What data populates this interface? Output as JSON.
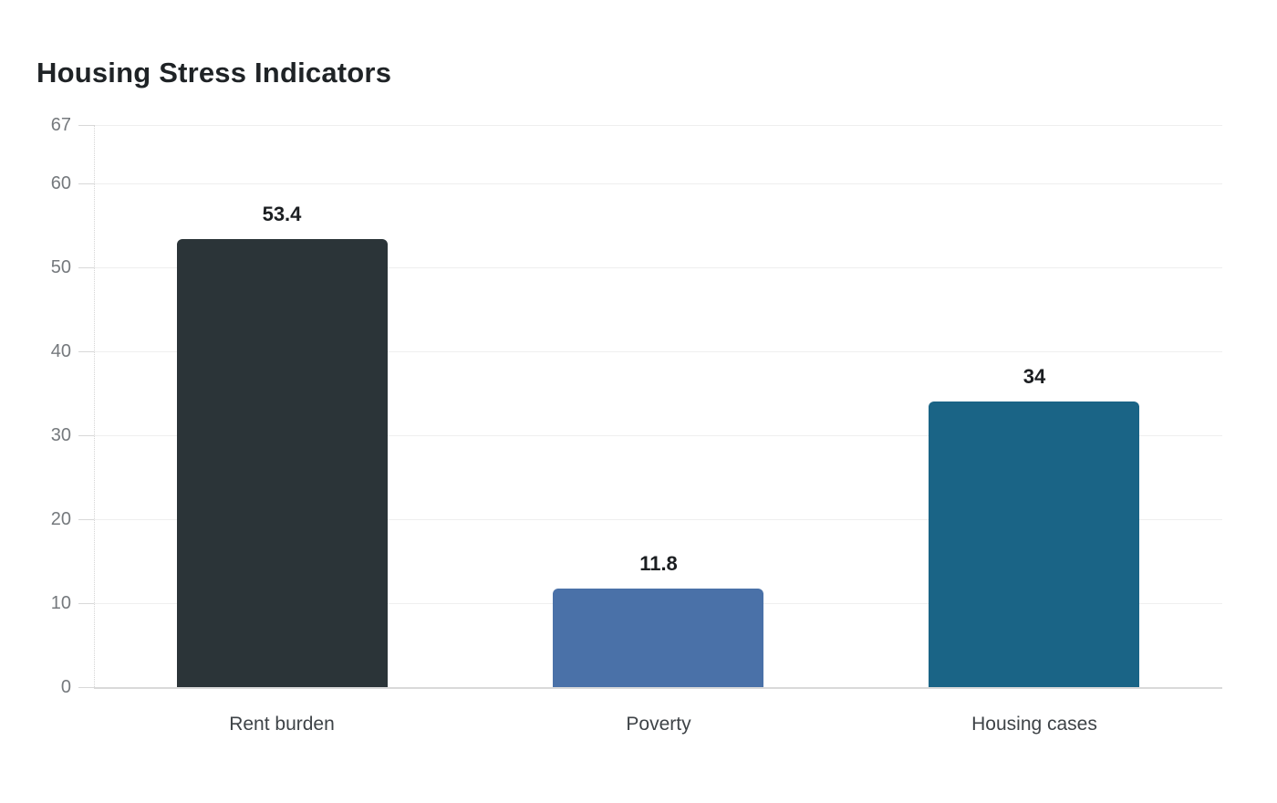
{
  "title": "Housing Stress Indicators",
  "chart_data": {
    "type": "bar",
    "title": "Housing Stress Indicators",
    "categories": [
      "Rent burden",
      "Poverty",
      "Housing cases"
    ],
    "values": [
      53.4,
      11.8,
      34
    ],
    "value_labels": [
      "53.4",
      "11.8",
      "34"
    ],
    "bar_colors": [
      "#2b3438",
      "#4a71a8",
      "#1a6486"
    ],
    "yticks": [
      0,
      10,
      20,
      30,
      40,
      50,
      60,
      67
    ],
    "ylim": [
      0,
      67
    ],
    "xlabel": "",
    "ylabel": "",
    "legend": "none",
    "grid": "horizontal-only",
    "colors": {
      "background": "#ffffff",
      "title_text": "#1f2326",
      "value_label_text": "#1b1e21",
      "axis_tick_text": "#75797d",
      "category_text": "#3e4347",
      "gridline": "#efefef",
      "tick_mark": "#d8d8d8",
      "axis_line": "#d4d4d4",
      "baseline": "#d9d9d9"
    }
  }
}
